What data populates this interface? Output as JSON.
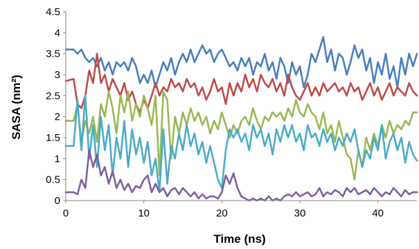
{
  "chart_data": {
    "type": "line",
    "title": "",
    "xlabel": "Time (ns)",
    "ylabel": "SASA (nm²)",
    "xlim": [
      0,
      45
    ],
    "ylim": [
      0,
      4.5
    ],
    "xticks": [
      "0",
      "10",
      "20",
      "30",
      "40"
    ],
    "yticks": [
      "0",
      "0.5",
      "1",
      "1.5",
      "2",
      "2.5",
      "3",
      "3.5",
      "4",
      "4.5"
    ],
    "grid": false,
    "legend": "none",
    "series": [
      {
        "color": "#4a7ebb",
        "x": [
          0,
          1,
          1.5,
          2,
          2.5,
          3,
          3.5,
          4,
          4.5,
          5,
          5.5,
          6,
          6.5,
          7,
          7.5,
          8,
          8.5,
          9,
          9.5,
          10,
          10.5,
          11,
          11.5,
          12,
          12.5,
          13,
          13.5,
          14,
          14.5,
          15,
          15.5,
          16,
          16.5,
          17,
          17.5,
          18,
          18.5,
          19,
          19.5,
          20,
          20.5,
          21,
          21.5,
          22,
          22.5,
          23,
          23.5,
          24,
          24.5,
          25,
          25.5,
          26,
          26.5,
          27,
          27.5,
          28,
          28.5,
          29,
          29.5,
          30,
          30.5,
          31,
          31.5,
          32,
          32.5,
          33,
          33.5,
          34,
          34.5,
          35,
          35.5,
          36,
          36.5,
          37,
          37.5,
          38,
          38.5,
          39,
          39.5,
          40,
          40.5,
          41,
          41.5,
          42,
          42.5,
          43,
          43.5,
          44,
          44.5,
          45
        ],
        "y": [
          3.6,
          3.6,
          3.5,
          3.6,
          3.4,
          3.3,
          3.4,
          3.2,
          3.4,
          3.1,
          3.3,
          3.0,
          3.3,
          3.2,
          3.3,
          3.1,
          3.4,
          3.2,
          2.8,
          3.0,
          2.8,
          3.1,
          2.7,
          3.0,
          3.3,
          3.1,
          3.4,
          3.0,
          3.3,
          3.5,
          3.3,
          3.6,
          3.3,
          3.5,
          3.7,
          3.5,
          3.6,
          3.3,
          3.5,
          3.6,
          3.4,
          3.2,
          3.3,
          3.1,
          3.4,
          3.2,
          3.4,
          3.0,
          3.3,
          3.2,
          3.5,
          3.1,
          3.3,
          2.9,
          3.4,
          3.2,
          2.8,
          3.3,
          3.0,
          3.2,
          2.7,
          3.0,
          3.5,
          3.3,
          3.6,
          3.9,
          3.3,
          3.6,
          3.1,
          3.5,
          3.4,
          3.0,
          3.3,
          3.7,
          3.4,
          3.6,
          3.1,
          3.4,
          2.8,
          3.3,
          3.0,
          3.5,
          2.9,
          3.2,
          2.7,
          3.4,
          3.0,
          3.5,
          3.2,
          3.5
        ]
      },
      {
        "color": "#be4b48",
        "x": [
          0,
          1,
          1.5,
          2,
          2.5,
          3,
          3.5,
          4,
          4.5,
          5,
          5.5,
          6,
          6.5,
          7,
          7.5,
          8,
          8.5,
          9,
          9.5,
          10,
          10.5,
          11,
          11.5,
          12,
          12.5,
          13,
          13.5,
          14,
          14.5,
          15,
          15.5,
          16,
          16.5,
          17,
          17.5,
          18,
          18.5,
          19,
          19.5,
          20,
          20.5,
          21,
          21.5,
          22,
          22.5,
          23,
          23.5,
          24,
          24.5,
          25,
          25.5,
          26,
          26.5,
          27,
          27.5,
          28,
          28.5,
          29,
          29.5,
          30,
          30.5,
          31,
          31.5,
          32,
          32.5,
          33,
          33.5,
          34,
          34.5,
          35,
          35.5,
          36,
          36.5,
          37,
          37.5,
          38,
          38.5,
          39,
          39.5,
          40,
          40.5,
          41,
          41.5,
          42,
          42.5,
          43,
          43.5,
          44,
          44.5,
          45
        ],
        "y": [
          2.85,
          2.9,
          2.3,
          2.2,
          2.5,
          3.1,
          2.8,
          3.5,
          2.8,
          3.0,
          2.6,
          2.9,
          2.7,
          2.5,
          2.8,
          2.4,
          2.6,
          2.3,
          2.1,
          2.4,
          2.2,
          2.5,
          2.8,
          2.5,
          2.7,
          2.6,
          2.9,
          2.7,
          2.8,
          2.6,
          2.9,
          2.7,
          2.8,
          2.5,
          2.7,
          2.4,
          2.6,
          2.9,
          2.6,
          2.7,
          2.3,
          2.8,
          2.5,
          2.8,
          2.6,
          3.0,
          2.7,
          2.9,
          2.6,
          3.0,
          2.8,
          2.7,
          2.9,
          2.6,
          2.8,
          2.5,
          3.0,
          2.7,
          2.5,
          2.4,
          2.6,
          2.8,
          2.5,
          2.7,
          2.5,
          2.8,
          2.6,
          2.7,
          2.8,
          2.6,
          2.7,
          2.5,
          2.8,
          2.6,
          2.7,
          2.4,
          2.6,
          2.8,
          2.5,
          2.7,
          2.4,
          2.6,
          2.8,
          2.5,
          2.7,
          2.6,
          2.5,
          2.8,
          2.6,
          2.5
        ]
      },
      {
        "color": "#98b954",
        "x": [
          0,
          1,
          1.5,
          2,
          2.5,
          3,
          3.5,
          4,
          4.5,
          5,
          5.5,
          6,
          6.5,
          7,
          7.5,
          8,
          8.5,
          9,
          9.5,
          10,
          10.5,
          11,
          11.5,
          12,
          12.5,
          13,
          13.5,
          14,
          14.5,
          15,
          15.5,
          16,
          16.5,
          17,
          17.5,
          18,
          18.5,
          19,
          19.5,
          20,
          20.5,
          21,
          21.5,
          22,
          22.5,
          23,
          23.5,
          24,
          24.5,
          25,
          25.5,
          26,
          26.5,
          27,
          27.5,
          28,
          28.5,
          29,
          29.5,
          30,
          30.5,
          31,
          31.5,
          32,
          32.5,
          33,
          33.5,
          34,
          34.5,
          35,
          35.5,
          36,
          36.5,
          37,
          37.5,
          38,
          38.5,
          39,
          39.5,
          40,
          40.5,
          41,
          41.5,
          42,
          42.5,
          43,
          43.5,
          44,
          44.5,
          45
        ],
        "y": [
          1.9,
          1.9,
          2.3,
          1.4,
          1.9,
          1.6,
          2.0,
          1.4,
          2.3,
          2.0,
          2.6,
          2.2,
          1.6,
          2.5,
          2.1,
          2.6,
          1.9,
          2.3,
          2.0,
          2.5,
          2.2,
          1.8,
          2.5,
          0.6,
          2.6,
          2.4,
          1.0,
          2.0,
          1.6,
          2.1,
          1.8,
          2.2,
          1.9,
          2.1,
          1.8,
          2.0,
          1.6,
          1.9,
          1.7,
          2.1,
          1.8,
          1.5,
          1.8,
          1.6,
          1.9,
          2.0,
          1.8,
          2.2,
          1.9,
          1.7,
          2.0,
          1.9,
          2.1,
          2.0,
          2.1,
          1.9,
          2.2,
          2.0,
          2.4,
          2.1,
          2.0,
          2.3,
          2.1,
          2.0,
          1.7,
          2.1,
          1.6,
          1.8,
          1.4,
          1.9,
          1.5,
          1.1,
          1.0,
          0.5,
          1.2,
          0.8,
          1.5,
          1.2,
          1.6,
          1.3,
          1.8,
          1.5,
          1.9,
          1.6,
          1.8,
          1.7,
          1.9,
          1.8,
          2.1,
          2.1
        ]
      },
      {
        "color": "#4bacc6",
        "x": [
          0,
          1,
          1.5,
          2,
          2.5,
          3,
          3.5,
          4,
          4.5,
          5,
          5.5,
          6,
          6.5,
          7,
          7.5,
          8,
          8.5,
          9,
          9.5,
          10,
          10.5,
          11,
          11.5,
          12,
          12.5,
          13,
          13.5,
          14,
          14.5,
          15,
          15.5,
          16,
          16.5,
          17,
          17.5,
          18,
          18.5,
          19,
          19.5,
          20,
          20.5,
          21,
          21.5,
          22,
          22.5,
          23,
          23.5,
          24,
          24.5,
          25,
          25.5,
          26,
          26.5,
          27,
          27.5,
          28,
          28.5,
          29,
          29.5,
          30,
          30.5,
          31,
          31.5,
          32,
          32.5,
          33,
          33.5,
          34,
          34.5,
          35,
          35.5,
          36,
          36.5,
          37,
          37.5,
          38,
          38.5,
          39,
          39.5,
          40,
          40.5,
          41,
          41.5,
          42,
          42.5,
          43,
          43.5,
          44,
          44.5,
          45
        ],
        "y": [
          1.3,
          1.3,
          2.4,
          1.2,
          2.5,
          1.0,
          1.8,
          0.8,
          2.0,
          1.2,
          1.8,
          0.6,
          1.5,
          1.0,
          1.9,
          0.8,
          1.7,
          1.1,
          1.5,
          0.9,
          1.4,
          0.6,
          1.0,
          0.2,
          1.7,
          0.4,
          1.3,
          1.0,
          1.6,
          1.2,
          1.8,
          1.3,
          1.6,
          1.1,
          1.4,
          0.9,
          1.3,
          0.9,
          0.5,
          0.3,
          1.2,
          1.7,
          1.5,
          1.7,
          1.4,
          1.6,
          1.2,
          1.8,
          1.5,
          1.7,
          1.3,
          1.6,
          1.1,
          1.7,
          1.4,
          1.8,
          1.5,
          1.8,
          1.4,
          1.6,
          1.2,
          1.8,
          1.5,
          1.6,
          1.3,
          1.7,
          1.4,
          1.6,
          1.2,
          1.5,
          1.3,
          1.6,
          1.4,
          1.7,
          1.2,
          0.8,
          1.2,
          1.0,
          1.5,
          1.2,
          1.8,
          1.0,
          1.4,
          1.6,
          1.2,
          1.5,
          0.9,
          1.4,
          1.1,
          0.95
        ]
      },
      {
        "color": "#7d60a0",
        "x": [
          0,
          1,
          1.5,
          2,
          2.5,
          3,
          3.5,
          4,
          4.5,
          5,
          5.5,
          6,
          6.5,
          7,
          7.5,
          8,
          8.5,
          9,
          9.5,
          10,
          10.5,
          11,
          11.5,
          12,
          12.5,
          13,
          13.5,
          14,
          14.5,
          15,
          15.5,
          16,
          16.5,
          17,
          17.5,
          18,
          18.5,
          19,
          19.5,
          20,
          20.5,
          21,
          21.5,
          22,
          22.5,
          23,
          23.5,
          24,
          24.5,
          25,
          25.5,
          26,
          26.5,
          27,
          27.5,
          28,
          28.5,
          29,
          29.5,
          30,
          30.5,
          31,
          31.5,
          32,
          32.5,
          33,
          33.5,
          34,
          34.5,
          35,
          35.5,
          36,
          36.5,
          37,
          37.5,
          38,
          38.5,
          39,
          39.5,
          40,
          40.5,
          41,
          41.5,
          42,
          42.5,
          43,
          43.5,
          44,
          44.5,
          45
        ],
        "y": [
          0.2,
          0.2,
          0.15,
          0.5,
          0.3,
          1.2,
          0.8,
          1.1,
          0.6,
          0.8,
          0.4,
          0.7,
          0.3,
          0.5,
          0.25,
          0.4,
          0.2,
          0.35,
          0.3,
          0.5,
          0.6,
          0.2,
          0.4,
          0.2,
          0.3,
          0.1,
          0.25,
          0.3,
          0.15,
          0.3,
          0.2,
          0.1,
          0.2,
          0.05,
          0.15,
          0.05,
          0.1,
          0.1,
          0.05,
          0.2,
          0.6,
          0.4,
          0.65,
          0.3,
          0.1,
          0.05,
          0.0,
          0.05,
          0.0,
          0.05,
          0.0,
          0.1,
          0.0,
          0.05,
          0.0,
          0.1,
          0.15,
          0.1,
          0.2,
          0.1,
          0.15,
          0.2,
          0.1,
          0.15,
          0.3,
          0.1,
          0.2,
          0.15,
          0.25,
          0.2,
          0.1,
          0.3,
          0.2,
          0.3,
          0.15,
          0.2,
          0.25,
          0.15,
          0.3,
          0.2,
          0.1,
          0.2,
          0.15,
          0.3,
          0.2,
          0.1,
          0.25,
          0.15,
          0.2,
          0.2
        ]
      }
    ]
  }
}
